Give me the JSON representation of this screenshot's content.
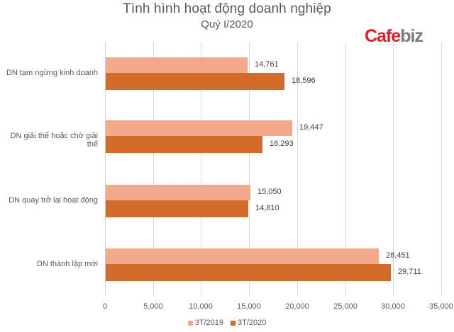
{
  "header": {
    "title": "Tình hình hoạt động doanh nghiệp",
    "subtitle": "Quý I/2020"
  },
  "logo": {
    "part1": "Cafe",
    "part2": "biz"
  },
  "colors": {
    "series_2019": "#f2a98c",
    "series_2020": "#d46b2a"
  },
  "axis": {
    "ticks": [
      "0",
      "5,000",
      "10,000",
      "15,000",
      "20,000",
      "25,000",
      "30,000",
      "35,000"
    ]
  },
  "categories": [
    {
      "label": "DN tạm ngừng kinh doanh",
      "v2019": "14,761",
      "v2020": "18,596"
    },
    {
      "label": "DN giải thể hoặc chờ giải thể",
      "v2019": "19,447",
      "v2020": "16,293"
    },
    {
      "label": "DN quay trở lại hoạt động",
      "v2019": "15,050",
      "v2020": "14,810"
    },
    {
      "label": "DN thành lập mới",
      "v2019": "28,451",
      "v2020": "29,711"
    }
  ],
  "legend": [
    {
      "label": "3T/2019"
    },
    {
      "label": "3T/2020"
    }
  ],
  "chart_data": {
    "type": "bar",
    "orientation": "horizontal",
    "title": "Tình hình hoạt động doanh nghiệp",
    "subtitle": "Quý I/2020",
    "categories": [
      "DN tạm ngừng kinh doanh",
      "DN giải thể hoặc chờ giải thể",
      "DN quay trở lại hoạt động",
      "DN thành lập mới"
    ],
    "series": [
      {
        "name": "3T/2019",
        "color": "#f2a98c",
        "values": [
          14761,
          19447,
          15050,
          28451
        ]
      },
      {
        "name": "3T/2020",
        "color": "#d46b2a",
        "values": [
          18596,
          16293,
          14810,
          29711
        ]
      }
    ],
    "xlabel": "",
    "ylabel": "",
    "xlim": [
      0,
      35000
    ],
    "xticks": [
      0,
      5000,
      10000,
      15000,
      20000,
      25000,
      30000,
      35000
    ],
    "grid": true,
    "legend_position": "bottom",
    "data_labels": true
  }
}
